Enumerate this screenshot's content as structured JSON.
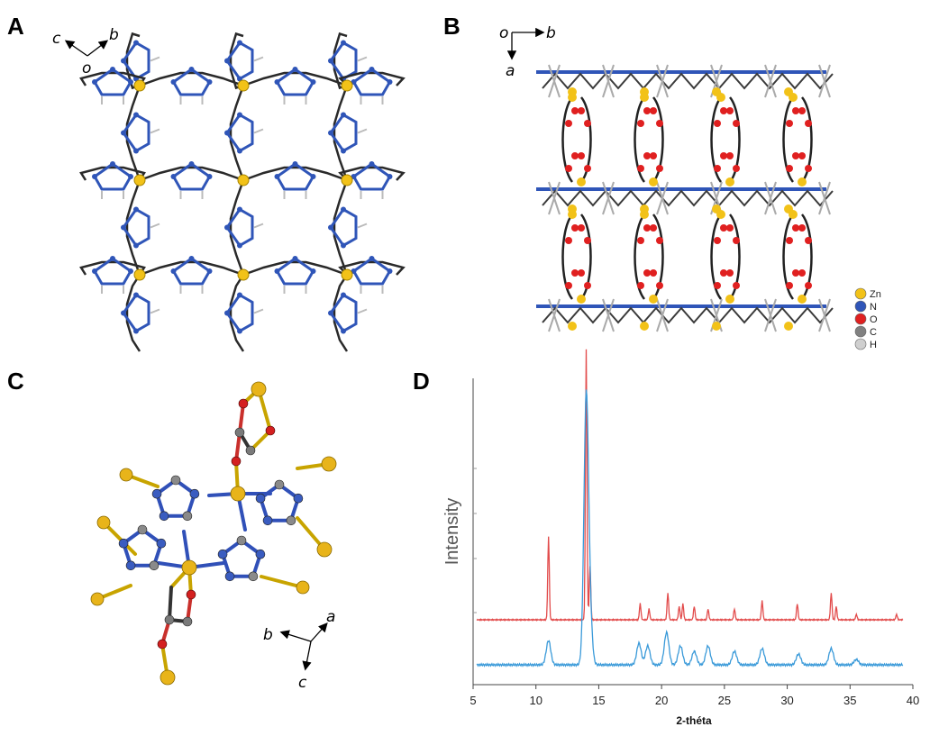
{
  "panels": {
    "a": "A",
    "b": "B",
    "c": "C",
    "d": "D"
  },
  "axes": {
    "a": {
      "c": "c",
      "b": "b",
      "o": "o"
    },
    "b": {
      "o": "o",
      "b": "b",
      "a": "a"
    },
    "c": {
      "a": "a",
      "b": "b",
      "c": "c"
    }
  },
  "legend": [
    {
      "label": "Zn",
      "color": "#f2c218"
    },
    {
      "label": "N",
      "color": "#2f55b8"
    },
    {
      "label": "O",
      "color": "#e02020"
    },
    {
      "label": "C",
      "color": "#808080"
    },
    {
      "label": "H",
      "color": "#cfcfcf"
    }
  ],
  "colors": {
    "zn": "#f2c218",
    "n": "#2f55b8",
    "o": "#e02020",
    "c": "#555555",
    "h": "#bbbbbb",
    "red": "#e24b4b",
    "blue": "#3a9ad9"
  },
  "chart_data": {
    "type": "line",
    "xlabel": "2-théta",
    "ylabel": "Intensity",
    "xlim": [
      5,
      40
    ],
    "xticks": [
      5,
      10,
      15,
      20,
      25,
      30,
      35,
      40
    ],
    "series": [
      {
        "color": "#e24b4b",
        "baseline": 0.25,
        "peaks": [
          [
            11.0,
            0.31
          ],
          [
            14.0,
            1.0
          ],
          [
            14.3,
            0.2
          ],
          [
            18.3,
            0.06
          ],
          [
            19.0,
            0.04
          ],
          [
            20.5,
            0.1
          ],
          [
            21.4,
            0.05
          ],
          [
            21.7,
            0.06
          ],
          [
            22.6,
            0.05
          ],
          [
            23.7,
            0.04
          ],
          [
            25.8,
            0.04
          ],
          [
            28.0,
            0.07
          ],
          [
            30.8,
            0.06
          ],
          [
            33.5,
            0.1
          ],
          [
            33.9,
            0.05
          ],
          [
            35.5,
            0.02
          ],
          [
            38.7,
            0.02
          ]
        ]
      },
      {
        "color": "#3a9ad9",
        "baseline": 0.0,
        "peaks": [
          [
            11.0,
            0.09
          ],
          [
            14.0,
            0.98
          ],
          [
            14.3,
            0.15
          ],
          [
            18.2,
            0.08
          ],
          [
            18.9,
            0.07
          ],
          [
            20.4,
            0.12
          ],
          [
            21.5,
            0.07
          ],
          [
            22.6,
            0.05
          ],
          [
            23.7,
            0.07
          ],
          [
            25.8,
            0.05
          ],
          [
            28.0,
            0.06
          ],
          [
            30.9,
            0.04
          ],
          [
            33.5,
            0.06
          ],
          [
            35.5,
            0.02
          ]
        ]
      }
    ]
  }
}
